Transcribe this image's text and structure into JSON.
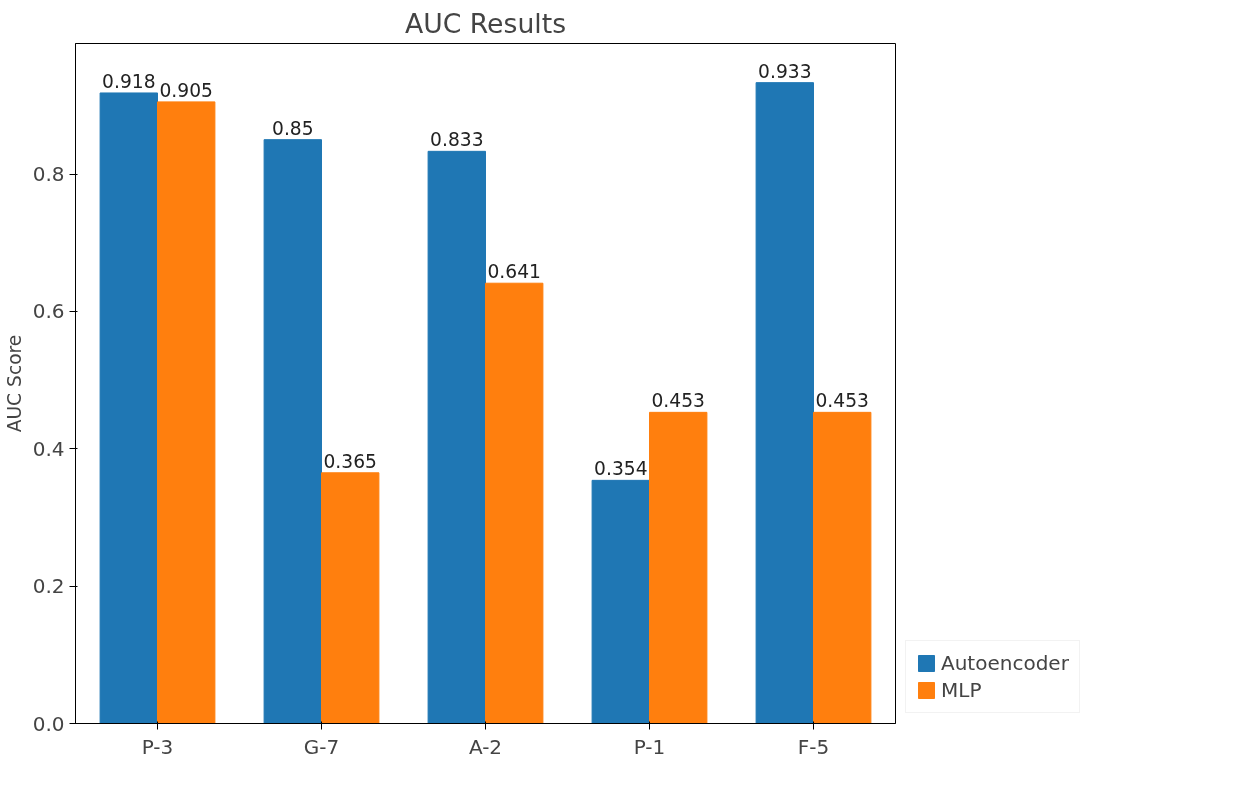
{
  "chart_data": {
    "type": "bar",
    "title": "AUC Results",
    "ylabel": "AUC Score",
    "categories": [
      "P-3",
      "G-7",
      "A-2",
      "P-1",
      "F-5"
    ],
    "series": [
      {
        "name": "Autoencoder",
        "color": "#1f77b4",
        "values": [
          0.918,
          0.85,
          0.833,
          0.354,
          0.933
        ]
      },
      {
        "name": "MLP",
        "color": "#ff7f0e",
        "values": [
          0.905,
          0.365,
          0.641,
          0.453,
          0.453
        ]
      }
    ],
    "ylim": [
      0,
      0.99
    ],
    "yticks": [
      {
        "value": 0,
        "label": "0.0"
      },
      0.2,
      0.4,
      0.6,
      0.8
    ],
    "data_labels": true,
    "grid": false,
    "legend": "right"
  }
}
